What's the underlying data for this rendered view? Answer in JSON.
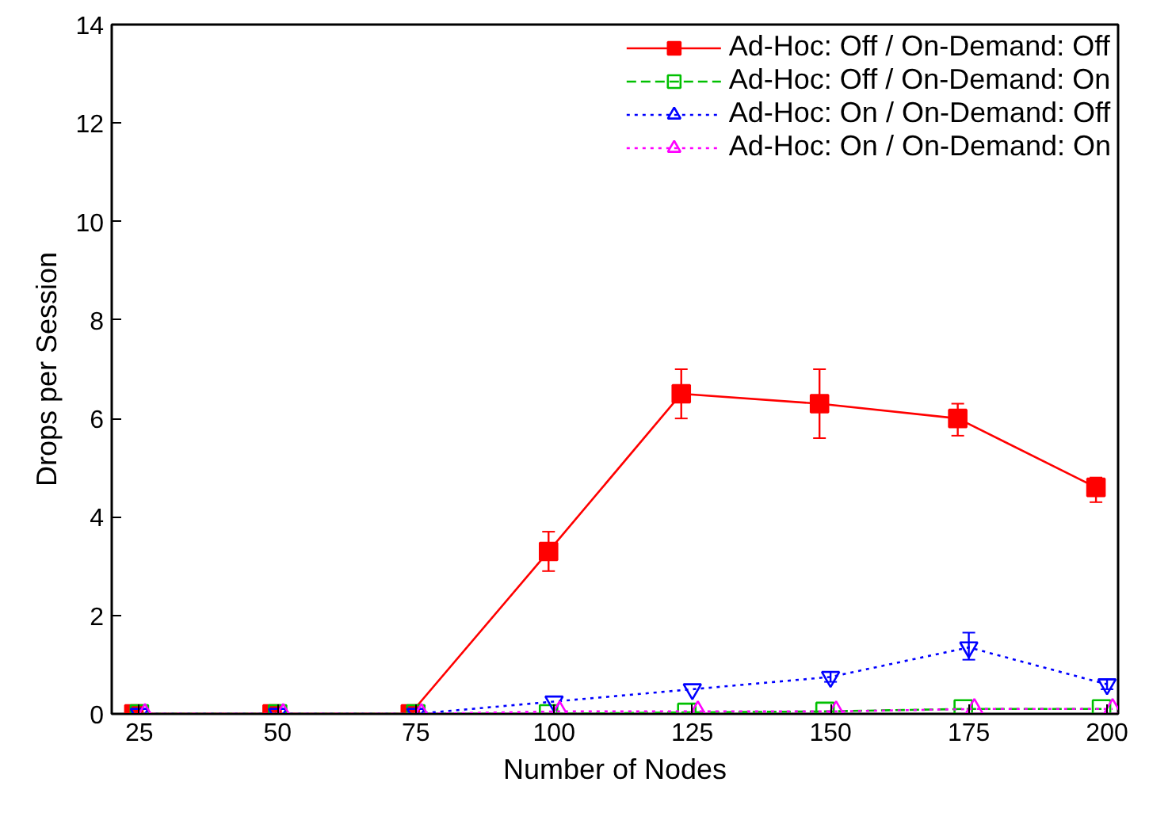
{
  "chart_data": {
    "type": "line",
    "xlabel": "Number of Nodes",
    "ylabel": "Drops per Session",
    "xlim": [
      20,
      202
    ],
    "ylim": [
      0,
      14
    ],
    "xticks": [
      25,
      50,
      75,
      100,
      125,
      150,
      175,
      200
    ],
    "yticks": [
      0,
      2,
      4,
      6,
      8,
      10,
      12,
      14
    ],
    "grid": false,
    "legend": "top right",
    "series": [
      {
        "name": "Ad-Hoc: Off / On-Demand: Off",
        "color": "#ff0000",
        "marker": "square",
        "line_style": "solid",
        "x": [
          24,
          49,
          74,
          99,
          123,
          148,
          173,
          198
        ],
        "values": [
          0,
          0,
          0,
          3.3,
          6.5,
          6.3,
          6.0,
          4.6
        ],
        "errors": [
          null,
          null,
          null,
          [
            2.9,
            3.7
          ],
          [
            6.0,
            7.0
          ],
          [
            5.6,
            7.0
          ],
          [
            5.65,
            6.3
          ],
          [
            4.3,
            4.8
          ]
        ]
      },
      {
        "name": "Ad-Hoc: Off / On-Demand: On",
        "color": "#00c000",
        "marker": "square",
        "line_style": "dashed",
        "x": [
          25,
          50,
          75,
          99,
          124,
          149,
          174,
          199
        ],
        "values": [
          0,
          0,
          0,
          0,
          0.03,
          0.05,
          0.1,
          0.1
        ]
      },
      {
        "name": "Ad-Hoc: On / On-Demand: Off",
        "color": "#0000ff",
        "marker": "triangle",
        "line_style": "dotted",
        "x": [
          25,
          50,
          75,
          100,
          125,
          150,
          175,
          200
        ],
        "values": [
          0,
          0,
          0,
          0.25,
          0.5,
          0.75,
          1.35,
          0.6
        ],
        "errors": [
          null,
          null,
          null,
          null,
          null,
          [
            0.65,
            0.85
          ],
          [
            1.1,
            1.65
          ],
          [
            0.5,
            0.7
          ]
        ]
      },
      {
        "name": "Ad-Hoc: On / On-Demand: On",
        "color": "#ff00ff",
        "marker": "triangle",
        "line_style": "dotted",
        "x": [
          26,
          51,
          76,
          101,
          126,
          151,
          176,
          201
        ],
        "values": [
          0,
          0,
          0,
          0.05,
          0.05,
          0.05,
          0.1,
          0.1
        ]
      }
    ]
  }
}
